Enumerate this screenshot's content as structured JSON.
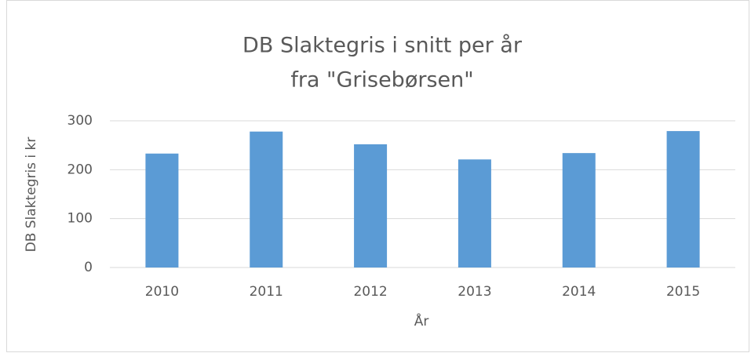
{
  "chart_data": {
    "type": "bar",
    "title": [
      "DB Slaktegris i snitt per år",
      "fra \"Grisebørsen\""
    ],
    "x_label": "År",
    "y_label": "DB Slaktegris i kr",
    "categories": [
      "2010",
      "2011",
      "2012",
      "2013",
      "2014",
      "2015"
    ],
    "values": [
      233,
      278,
      252,
      221,
      234,
      279
    ],
    "color": "#5b9bd5",
    "ylim": [
      0,
      300
    ],
    "yticks": [
      0,
      100,
      200,
      300
    ],
    "grid": true
  }
}
